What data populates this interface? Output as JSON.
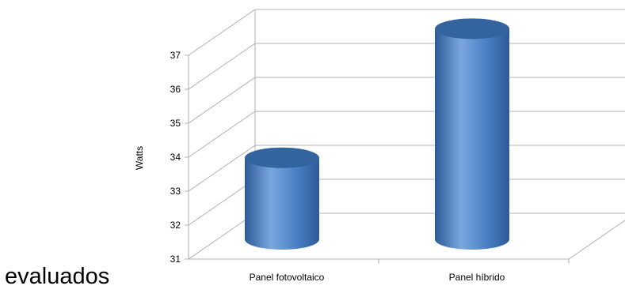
{
  "caption": "evaluados",
  "chart_data": {
    "type": "bar",
    "style": "3d-cylinder",
    "categories": [
      "Panel fotovoltaico",
      "Panel híbrido"
    ],
    "values": [
      33.4,
      37.2
    ],
    "ylabel": "Watts",
    "xlabel": "",
    "title": "",
    "ylim": [
      31,
      37
    ],
    "yticks": [
      31,
      32,
      33,
      34,
      35,
      36,
      37
    ],
    "grid": true,
    "legend": "none",
    "colors": {
      "bar": "#4a7fc4",
      "bar_dark": "#2d5a96",
      "bar_light": "#7aa6e0",
      "top": "#34649f",
      "grid": "#b0b0b0"
    }
  }
}
